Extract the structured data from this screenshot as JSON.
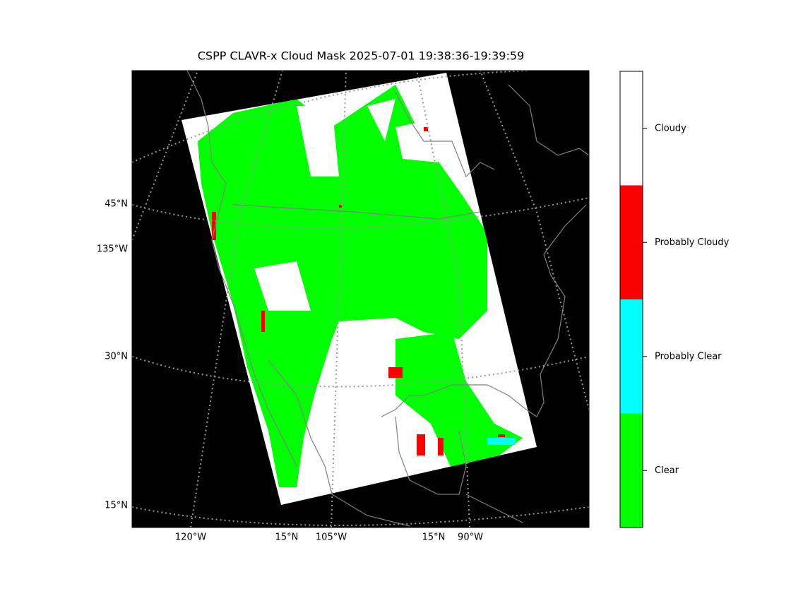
{
  "title": "CSPP CLAVR-x Cloud Mask 2025-07-01 19:38:36-19:39:59",
  "left_labels": [
    "45°N",
    "135°W",
    "30°N",
    "15°N"
  ],
  "bottom_labels": [
    "120°W",
    "15°N",
    "105°W",
    "15°N",
    "90°W"
  ],
  "legend": {
    "items": [
      {
        "label": "Cloudy",
        "color": "#ffffff"
      },
      {
        "label": "Probably Cloudy",
        "color": "#ff0000"
      },
      {
        "label": "Probably Clear",
        "color": "#00ffff"
      },
      {
        "label": "Clear",
        "color": "#00ff00"
      }
    ]
  }
}
